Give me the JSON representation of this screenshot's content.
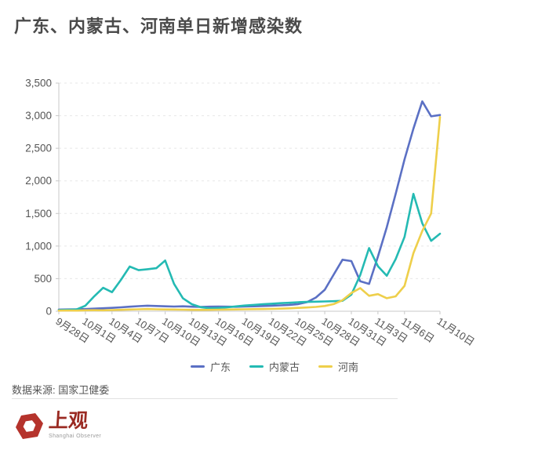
{
  "page": {
    "title": "广东、内蒙古、河南单日新增感染数",
    "source": "数据来源: 国家卫健委"
  },
  "logo": {
    "name": "上观",
    "subtitle": "Shanghai Observer",
    "mark_color": "#b5332c"
  },
  "legend": [
    {
      "label": "广东",
      "color": "#5b70c4"
    },
    {
      "label": "内蒙古",
      "color": "#24bab3"
    },
    {
      "label": "河南",
      "color": "#eecf4b"
    }
  ],
  "colors": {
    "grid": "#e7e7e7",
    "axis": "#c8c8c8",
    "axis_text": "#555555",
    "title_text": "#4a4a4a"
  },
  "chart_data": {
    "type": "line",
    "title": "广东、内蒙古、河南单日新增感染数",
    "xlabel": "",
    "ylabel": "",
    "ylim": [
      0,
      3500
    ],
    "yticks": [
      0,
      500,
      1000,
      1500,
      2000,
      2500,
      3000,
      3500
    ],
    "grid": "dashed-horizontal",
    "legend_position": "bottom",
    "x": [
      "9月28日",
      "9月29日",
      "9月30日",
      "10月1日",
      "10月2日",
      "10月3日",
      "10月4日",
      "10月5日",
      "10月6日",
      "10月7日",
      "10月8日",
      "10月9日",
      "10月10日",
      "10月11日",
      "10月12日",
      "10月13日",
      "10月14日",
      "10月15日",
      "10月16日",
      "10月17日",
      "10月18日",
      "10月19日",
      "10月20日",
      "10月21日",
      "10月22日",
      "10月23日",
      "10月24日",
      "10月25日",
      "10月26日",
      "10月27日",
      "10月28日",
      "10月29日",
      "10月30日",
      "10月31日",
      "11月1日",
      "11月2日",
      "11月3日",
      "11月4日",
      "11月5日",
      "11月6日",
      "11月7日",
      "11月8日",
      "11月9日",
      "11月10日"
    ],
    "x_tick_indices": [
      0,
      3,
      6,
      9,
      12,
      15,
      18,
      21,
      24,
      27,
      30,
      33,
      36,
      39,
      43
    ],
    "series": [
      {
        "name": "广东",
        "color": "#5b70c4",
        "values": [
          25,
          28,
          30,
          34,
          40,
          46,
          52,
          60,
          70,
          78,
          85,
          80,
          76,
          72,
          76,
          70,
          66,
          70,
          72,
          70,
          68,
          72,
          76,
          80,
          85,
          90,
          98,
          110,
          140,
          210,
          330,
          560,
          790,
          770,
          460,
          420,
          840,
          1290,
          1800,
          2330,
          2800,
          3220,
          2990,
          3010
        ]
      },
      {
        "name": "内蒙古",
        "color": "#24bab3",
        "values": [
          18,
          22,
          28,
          85,
          230,
          360,
          292,
          480,
          685,
          630,
          645,
          660,
          778,
          420,
          200,
          108,
          62,
          46,
          50,
          60,
          74,
          88,
          98,
          108,
          116,
          124,
          130,
          138,
          143,
          147,
          150,
          154,
          160,
          255,
          555,
          970,
          690,
          545,
          800,
          1140,
          1800,
          1350,
          1080,
          1190
        ]
      },
      {
        "name": "河南",
        "color": "#eecf4b",
        "values": [
          10,
          12,
          10,
          14,
          16,
          14,
          18,
          22,
          26,
          30,
          34,
          30,
          28,
          26,
          24,
          22,
          20,
          22,
          24,
          26,
          28,
          30,
          32,
          34,
          36,
          40,
          45,
          52,
          58,
          66,
          80,
          110,
          170,
          280,
          355,
          237,
          262,
          200,
          228,
          390,
          890,
          1230,
          1500,
          2980
        ]
      }
    ]
  }
}
